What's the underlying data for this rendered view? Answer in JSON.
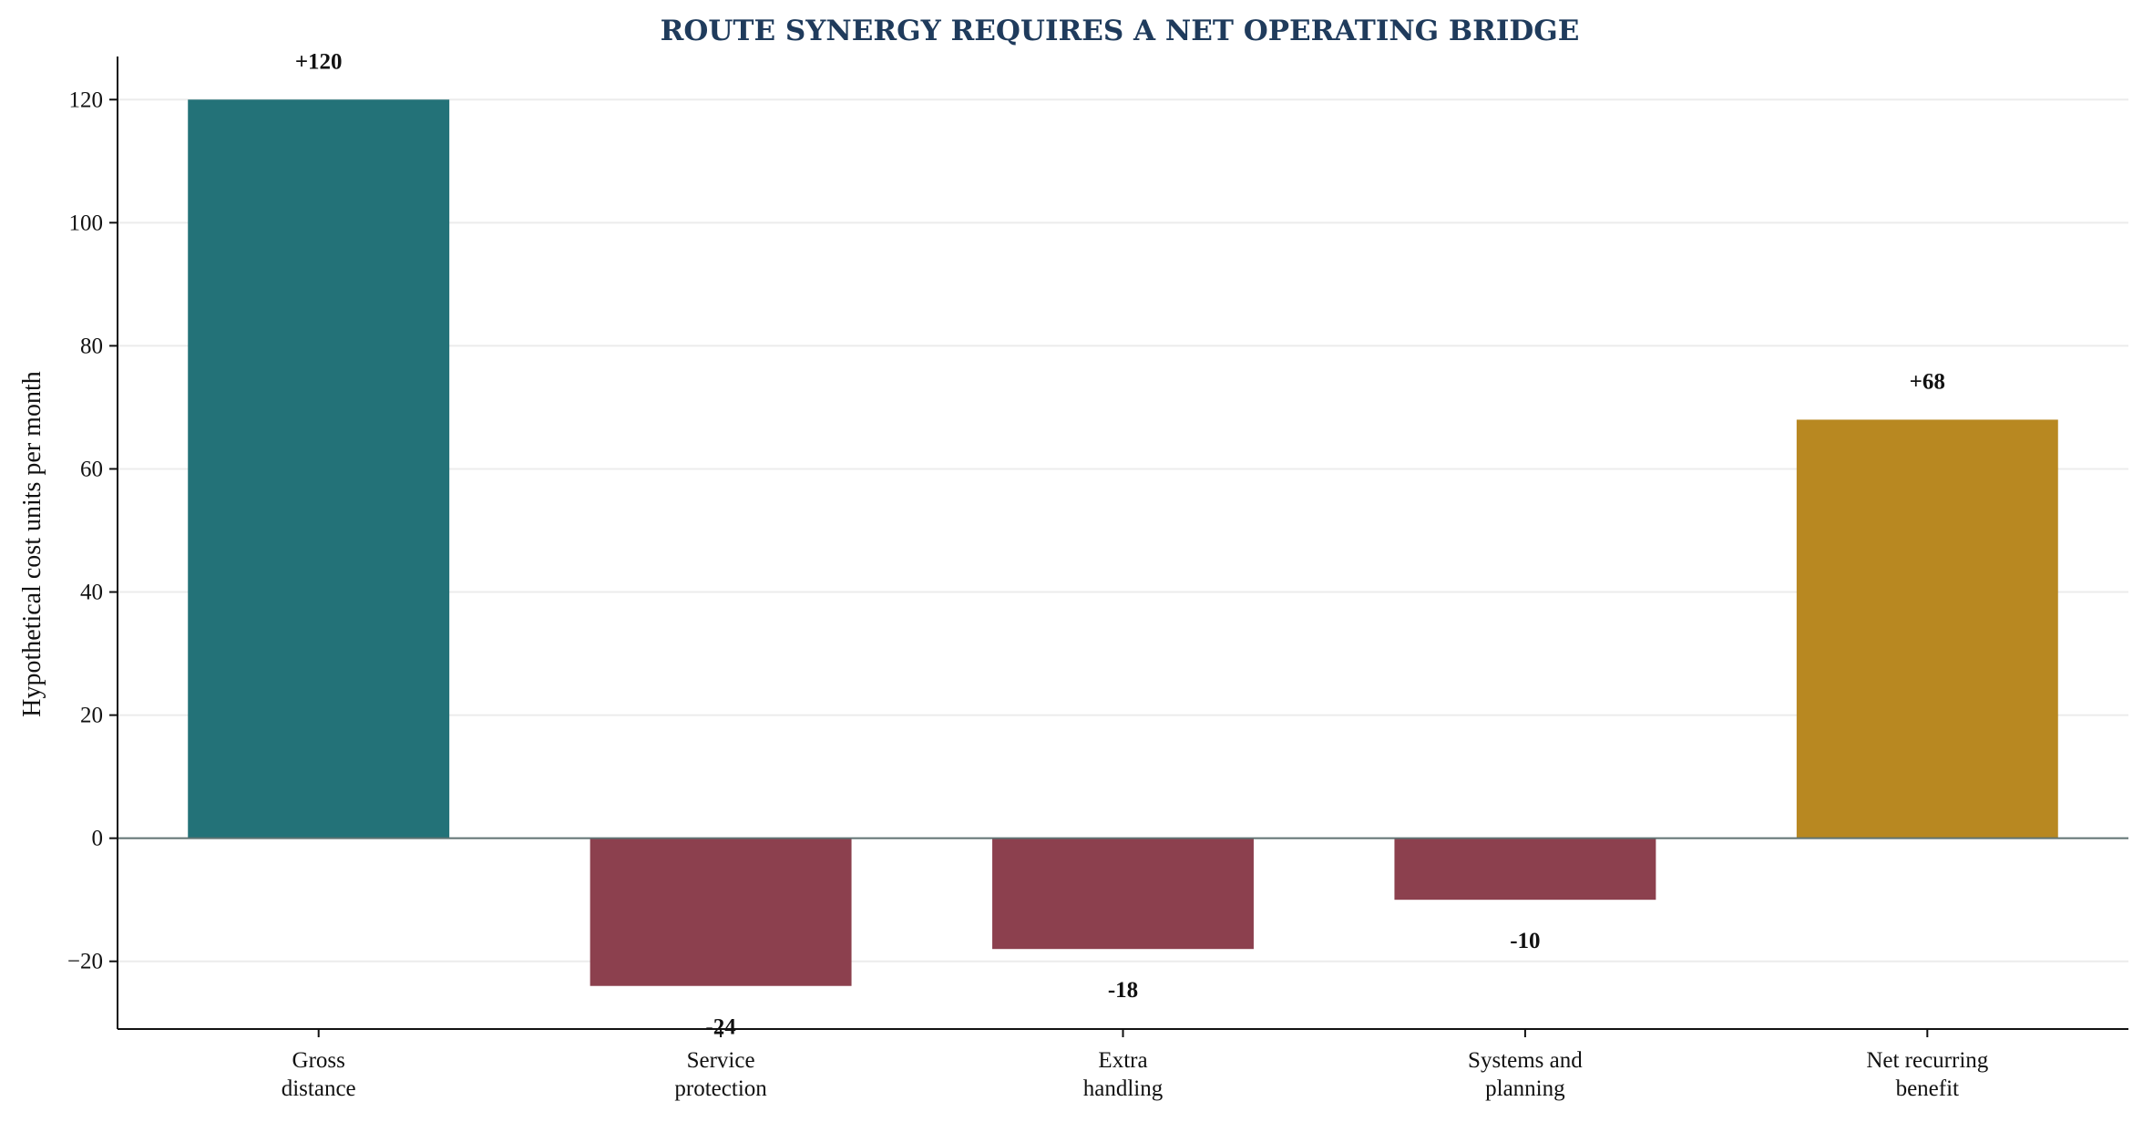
{
  "chart_data": {
    "type": "bar",
    "title": "ROUTE SYNERGY REQUIRES A NET OPERATING BRIDGE",
    "xlabel": "",
    "ylabel": "Hypothetical cost units per month",
    "ylim": [
      -31,
      127
    ],
    "yticks": [
      -20,
      0,
      20,
      40,
      60,
      80,
      100,
      120
    ],
    "ytick_labels": [
      "−20",
      "0",
      "20",
      "40",
      "60",
      "80",
      "100",
      "120"
    ],
    "grid": "horizontal",
    "legend": "none",
    "categories": [
      [
        "Gross",
        "distance"
      ],
      [
        "Service",
        "protection"
      ],
      [
        "Extra",
        "handling"
      ],
      [
        "Systems and",
        "planning"
      ],
      [
        "Net recurring",
        "benefit"
      ]
    ],
    "values": [
      120,
      -24,
      -18,
      -10,
      68
    ],
    "data_labels": [
      "+120",
      "-24",
      "-18",
      "-10",
      "+68"
    ],
    "colors": [
      "#237278",
      "#8c404e",
      "#8c404e",
      "#8c404e",
      "#b88821"
    ],
    "title_color": "#1f3b5c",
    "zero_line_color": "#5f7272",
    "grid_color": "#ececec"
  }
}
